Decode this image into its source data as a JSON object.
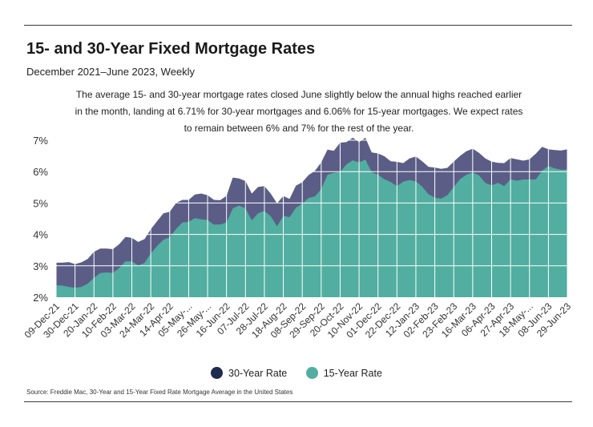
{
  "title": "15- and 30-Year Fixed Mortgage Rates",
  "subtitle": "December 2021–June 2023, Weekly",
  "annotation": "The average 15- and 30-year mortgage rates closed June slightly below the annual highs reached earlier in the month, landing at 6.71% for 30-year mortgages and 6.06% for 15-year mortgages. We expect rates to remain between 6% and 7% for the rest of the year.",
  "source": "Source:  Freddie Mac, 30-Year  and 15-Year Fixed Rate Mortgage Average in the United States",
  "colors": {
    "thirty_year": "#5b5d86",
    "fifteen_year": "#51aea0",
    "grid": "#ffffff",
    "plot_bg": "#ffffff"
  },
  "chart_data": {
    "type": "area",
    "xlabel": "",
    "ylabel": "",
    "ylim": [
      2,
      7
    ],
    "yticks": [
      "2%",
      "3%",
      "4%",
      "5%",
      "6%",
      "7%"
    ],
    "grid": true,
    "legend_position": "bottom",
    "x_tick_labels": [
      "09-Dec-21",
      "30-Dec-21",
      "20-Jan-22",
      "10-Feb-22",
      "03-Mar-22",
      "24-Mar-22",
      "14-Apr-22",
      "05-May-...",
      "26-May-...",
      "16-Jun-22",
      "07-Jul-22",
      "28-Jul-22",
      "18-Aug-22",
      "08-Sep-22",
      "29-Sep-22",
      "20-Oct-22",
      "10-Nov-22",
      "01-Dec-22",
      "22-Dec-22",
      "12-Jan-23",
      "02-Feb-23",
      "23-Feb-23",
      "16-Mar-23",
      "06-Apr-23",
      "27-Apr-23",
      "18-May-...",
      "08-Jun-23",
      "29-Jun-23"
    ],
    "weeks": 82,
    "series": [
      {
        "name": "30-Year Rate",
        "values": [
          3.1,
          3.1,
          3.12,
          3.05,
          3.11,
          3.22,
          3.45,
          3.55,
          3.55,
          3.53,
          3.69,
          3.92,
          3.89,
          3.76,
          3.85,
          4.16,
          4.42,
          4.67,
          4.72,
          5.0,
          5.1,
          5.1,
          5.27,
          5.3,
          5.25,
          5.1,
          5.09,
          5.23,
          5.81,
          5.78,
          5.7,
          5.3,
          5.51,
          5.54,
          5.3,
          4.99,
          5.22,
          5.13,
          5.55,
          5.66,
          5.89,
          6.02,
          6.29,
          6.7,
          6.66,
          6.92,
          6.94,
          7.08,
          6.94,
          7.08,
          6.61,
          6.58,
          6.49,
          6.33,
          6.31,
          6.27,
          6.42,
          6.48,
          6.33,
          6.15,
          6.13,
          6.09,
          6.12,
          6.32,
          6.5,
          6.65,
          6.73,
          6.6,
          6.42,
          6.32,
          6.28,
          6.27,
          6.43,
          6.39,
          6.35,
          6.39,
          6.57,
          6.79,
          6.71,
          6.69,
          6.67,
          6.71
        ]
      },
      {
        "name": "15-Year Rate",
        "values": [
          2.38,
          2.37,
          2.33,
          2.3,
          2.33,
          2.43,
          2.62,
          2.77,
          2.79,
          2.77,
          2.93,
          3.14,
          3.14,
          3.01,
          3.09,
          3.39,
          3.63,
          3.83,
          3.91,
          4.17,
          4.38,
          4.4,
          4.52,
          4.48,
          4.46,
          4.31,
          4.32,
          4.38,
          4.83,
          4.92,
          4.83,
          4.45,
          4.67,
          4.75,
          4.58,
          4.26,
          4.59,
          4.55,
          4.85,
          4.98,
          5.16,
          5.21,
          5.44,
          5.9,
          5.96,
          5.99,
          6.23,
          6.36,
          6.29,
          6.38,
          5.98,
          5.9,
          5.76,
          5.67,
          5.54,
          5.68,
          5.73,
          5.69,
          5.52,
          5.28,
          5.17,
          5.14,
          5.25,
          5.51,
          5.76,
          5.9,
          5.97,
          5.88,
          5.64,
          5.56,
          5.64,
          5.54,
          5.75,
          5.71,
          5.75,
          5.75,
          5.75,
          6.03,
          6.18,
          6.1,
          6.06,
          6.06
        ]
      }
    ]
  }
}
